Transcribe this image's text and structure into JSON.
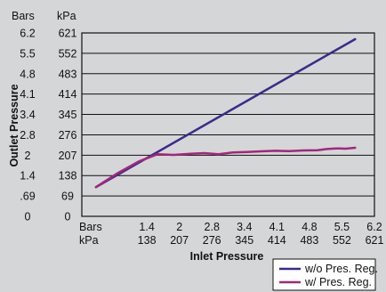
{
  "chart_data": {
    "type": "line",
    "title": "",
    "xlabel": "Inlet Pressure",
    "ylabel": "Outlet Pressure",
    "x_unit_labels": [
      "Bars",
      "kPa"
    ],
    "y_unit_labels": [
      "Bars",
      "kPa"
    ],
    "x_ticks_bars": [
      "1.4",
      "2",
      "2.8",
      "3.4",
      "4.1",
      "4.8",
      "5.5",
      "6.2"
    ],
    "x_ticks_kpa": [
      "138",
      "207",
      "276",
      "345",
      "414",
      "483",
      "552",
      "621"
    ],
    "y_ticks_bars": [
      "0",
      ".69",
      "1.4",
      "2",
      "2.8",
      "3.4",
      "4.1",
      "4.8",
      "5.5",
      "6.2"
    ],
    "y_ticks_kpa": [
      "0",
      "69",
      "138",
      "207",
      "276",
      "345",
      "414",
      "483",
      "552",
      "621"
    ],
    "xlim": [
      0,
      621
    ],
    "ylim": [
      0,
      621
    ],
    "grid": true,
    "legend_position": "bottom-right",
    "series": [
      {
        "name": "w/o Pres. Reg.",
        "color": "#3b2a8c",
        "x": [
          30,
          580
        ],
        "y": [
          99,
          600
        ]
      },
      {
        "name": "w/ Pres. Reg.",
        "color": "#a3267d",
        "x": [
          30,
          75,
          120,
          160,
          195,
          230,
          260,
          290,
          320,
          350,
          380,
          410,
          440,
          470,
          500,
          520,
          540,
          560,
          580
        ],
        "y": [
          99,
          145,
          185,
          210,
          208,
          212,
          214,
          210,
          216,
          218,
          220,
          222,
          221,
          223,
          224,
          228,
          230,
          229,
          232
        ]
      }
    ]
  }
}
